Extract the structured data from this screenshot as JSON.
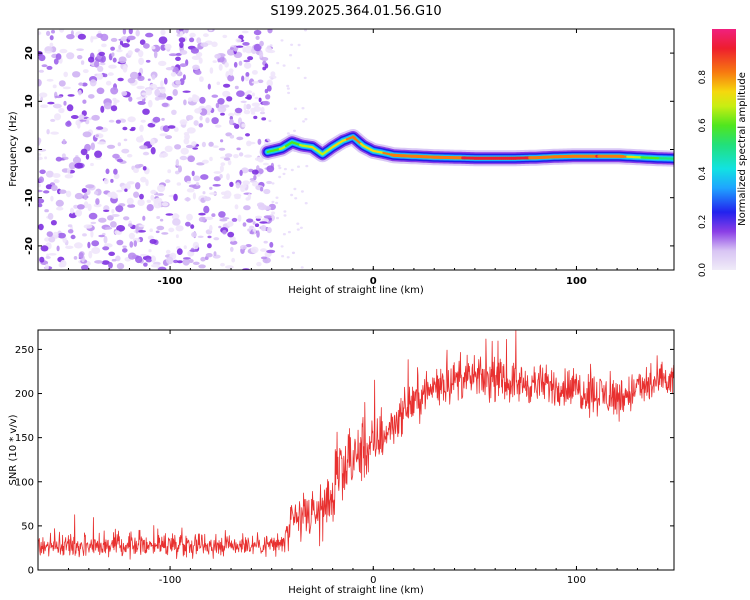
{
  "figure_title": "S199.2025.364.01.56.G10",
  "colors": {
    "snr_line": "#e8302f",
    "axis": "#000000",
    "background": "#ffffff"
  },
  "chart_data": [
    {
      "type": "heatmap",
      "title": "S199.2025.364.01.56.G10",
      "xlabel": "Height of straight line (km)",
      "ylabel": "Frequency (Hz)",
      "xlim": [
        -165,
        148
      ],
      "ylim": [
        -25,
        25
      ],
      "xticks": [
        -100,
        0,
        100
      ],
      "yticks": [
        -20,
        -10,
        0,
        10,
        20
      ],
      "colorbar": {
        "label": "Normalized spectral amplitude",
        "range": [
          0,
          1
        ],
        "ticks": [
          0.0,
          0.2,
          0.4,
          0.6,
          0.8
        ]
      },
      "noise_region_x": [
        -165,
        -52
      ],
      "ridge": {
        "x": [
          -52,
          -45,
          -40,
          -35,
          -30,
          -25,
          -20,
          -15,
          -10,
          -5,
          0,
          5,
          10,
          15,
          20,
          30,
          40,
          50,
          60,
          70,
          80,
          90,
          100,
          110,
          120,
          130,
          140,
          148
        ],
        "freq": [
          -0.5,
          0.2,
          1.5,
          0.8,
          0.5,
          -1.0,
          0.5,
          1.8,
          2.6,
          0.8,
          -0.3,
          -0.7,
          -1.2,
          -1.3,
          -1.4,
          -1.6,
          -1.7,
          -1.8,
          -1.8,
          -1.8,
          -1.7,
          -1.5,
          -1.4,
          -1.4,
          -1.4,
          -1.6,
          -1.8,
          -1.9
        ],
        "amplitude": [
          0.6,
          0.7,
          0.65,
          0.7,
          0.75,
          0.7,
          0.75,
          0.8,
          0.85,
          0.8,
          0.78,
          0.82,
          0.85,
          0.9,
          0.88,
          0.85,
          0.9,
          0.95,
          0.95,
          0.95,
          0.9,
          0.85,
          0.88,
          0.92,
          0.9,
          0.7,
          0.6,
          0.55
        ]
      }
    },
    {
      "type": "line",
      "xlabel": "Height of straight line (km)",
      "ylabel": "SNR (10 * v/v)",
      "xlim": [
        -165,
        148
      ],
      "ylim": [
        0,
        272
      ],
      "xticks": [
        -100,
        0,
        100
      ],
      "yticks": [
        0,
        50,
        100,
        150,
        200,
        250
      ],
      "series": [
        {
          "name": "SNR",
          "x": [
            -165,
            -140,
            -120,
            -100,
            -80,
            -60,
            -45,
            -40,
            -35,
            -30,
            -25,
            -20,
            -15,
            -10,
            -5,
            0,
            5,
            10,
            15,
            20,
            25,
            30,
            40,
            50,
            60,
            70,
            80,
            90,
            100,
            110,
            120,
            130,
            140,
            148
          ],
          "y": [
            28,
            28,
            29,
            29,
            29,
            29,
            29,
            50,
            60,
            62,
            68,
            85,
            110,
            125,
            135,
            140,
            152,
            165,
            180,
            192,
            198,
            208,
            215,
            218,
            215,
            212,
            210,
            208,
            205,
            200,
            195,
            205,
            212,
            215
          ],
          "noise_amplitude": [
            12,
            12,
            12,
            12,
            12,
            12,
            12,
            22,
            25,
            25,
            28,
            30,
            32,
            32,
            30,
            28,
            22,
            20,
            20,
            20,
            20,
            20,
            20,
            20,
            20,
            20,
            20,
            20,
            22,
            22,
            22,
            20,
            20,
            20
          ]
        }
      ]
    }
  ]
}
